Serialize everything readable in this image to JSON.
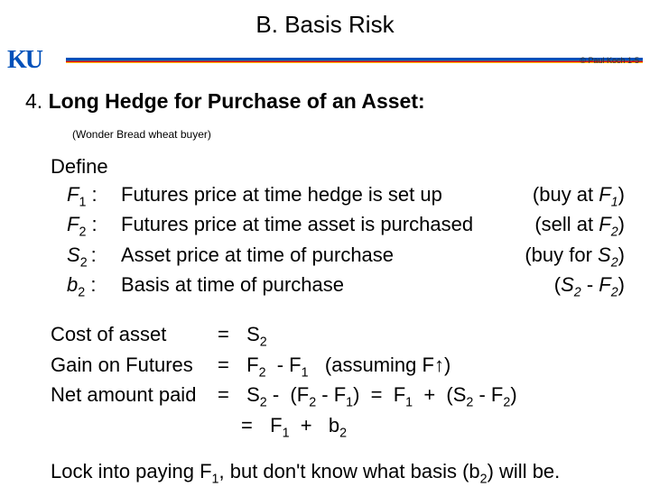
{
  "title": "B.  Basis Risk",
  "credit": "© Paul Koch 1-5",
  "heading_num": "4.",
  "heading_bold": "Long Hedge",
  "heading_rest": " for Purchase of an Asset:",
  "subnote": "(Wonder Bread wheat buyer)",
  "define_label": "Define",
  "defs": [
    {
      "sym": "F",
      "sub": "1",
      "text": "Futures price at time hedge is set up",
      "note_pre": "(buy at ",
      "note_sym": "F",
      "note_sub": "1",
      "note_post": ")"
    },
    {
      "sym": "F",
      "sub": "2",
      "text": "Futures price at time asset is purchased",
      "note_pre": "(sell at ",
      "note_sym": "F",
      "note_sub": "2",
      "note_post": ")"
    },
    {
      "sym": "S",
      "sub": "2",
      "text": "Asset price at time of purchase",
      "note_pre": "(buy for ",
      "note_sym": "S",
      "note_sub": "2",
      "note_post": ")"
    },
    {
      "sym": "b",
      "sub": "2",
      "text": "Basis at time of purchase",
      "note_plain": "(S₂ - F₂)"
    }
  ],
  "eq_cost_label": "Cost of asset",
  "eq_cost_rhs": "S",
  "eq_gain_label": "Gain on Futures",
  "eq_net_label": "Net  amount paid",
  "assuming": "(assuming F↑)",
  "conclusion_a": "Lock into paying F",
  "conclusion_b": ",  but don't know what basis (b",
  "conclusion_c": ") will be.",
  "colors": {
    "ku_blue": "#0051ba",
    "ku_red": "#e8000d",
    "ku_yellow": "#ffcc00"
  }
}
